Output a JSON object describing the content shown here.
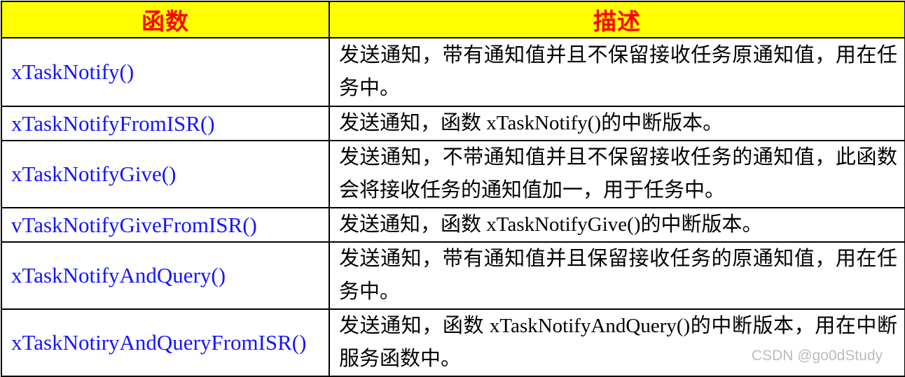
{
  "table": {
    "headers": [
      {
        "label": "函数"
      },
      {
        "label": "描述"
      }
    ],
    "rows": [
      {
        "function": "xTaskNotify()",
        "description": "发送通知，带有通知值并且不保留接收任务原通知值，用在任务中。"
      },
      {
        "function": "xTaskNotifyFromISR()",
        "description": "发送通知，函数 xTaskNotify()的中断版本。"
      },
      {
        "function": "xTaskNotifyGive()",
        "description": "发送通知，不带通知值并且不保留接收任务的通知值，此函数会将接收任务的通知值加一，用于任务中。"
      },
      {
        "function": "vTaskNotifyGiveFromISR()",
        "description": "发送通知，函数 xTaskNotifyGive()的中断版本。"
      },
      {
        "function": "xTaskNotifyAndQuery()",
        "description": "发送通知，带有通知值并且保留接收任务的原通知值，用在任务中。"
      },
      {
        "function": "xTaskNotiryAndQueryFromISR()",
        "description": "发送通知，函数 xTaskNotifyAndQuery()的中断版本，用在中断服务函数中。"
      }
    ]
  },
  "watermark": "CSDN @go0dStudy",
  "colors": {
    "header_bg": "#ffff00",
    "header_text": "#fe0000",
    "function_text": "#1414ff",
    "body_text": "#000000",
    "border": "#000000",
    "watermark_text": "#bcbcbc"
  }
}
